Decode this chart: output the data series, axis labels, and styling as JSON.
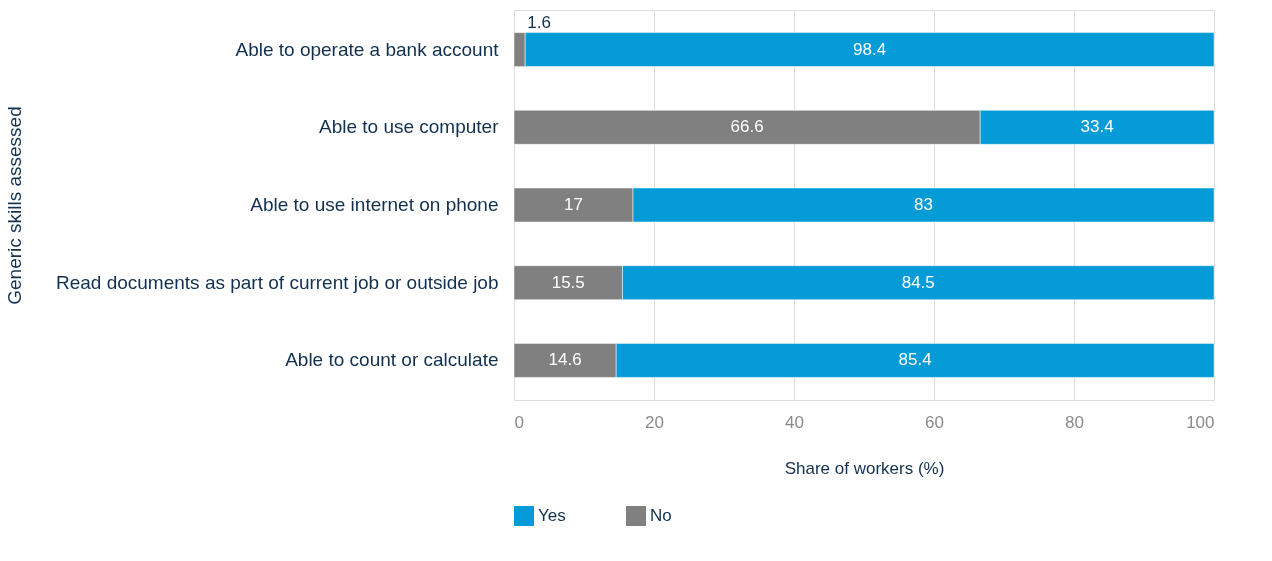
{
  "chart_data": {
    "type": "bar",
    "orientation": "horizontal",
    "stacked": true,
    "xlabel": "Share of workers (%)",
    "ylabel": "Generic skills assessed",
    "categories": [
      "Able to operate a bank account",
      "Able to use computer",
      "Able to use internet on phone",
      "Read documents as part of current job or outside job",
      "Able to count or calculate"
    ],
    "series": [
      {
        "name": "No",
        "color": "#808080",
        "values": [
          1.6,
          66.6,
          17,
          15.5,
          14.6
        ]
      },
      {
        "name": "Yes",
        "color": "#049bd6",
        "values": [
          98.4,
          33.4,
          83,
          84.5,
          85.4
        ]
      }
    ],
    "xlim": [
      0,
      100
    ],
    "xticks": [
      0,
      20,
      40,
      60,
      80,
      100
    ],
    "grid": "x",
    "legend": "bottom",
    "data_labels": true
  }
}
